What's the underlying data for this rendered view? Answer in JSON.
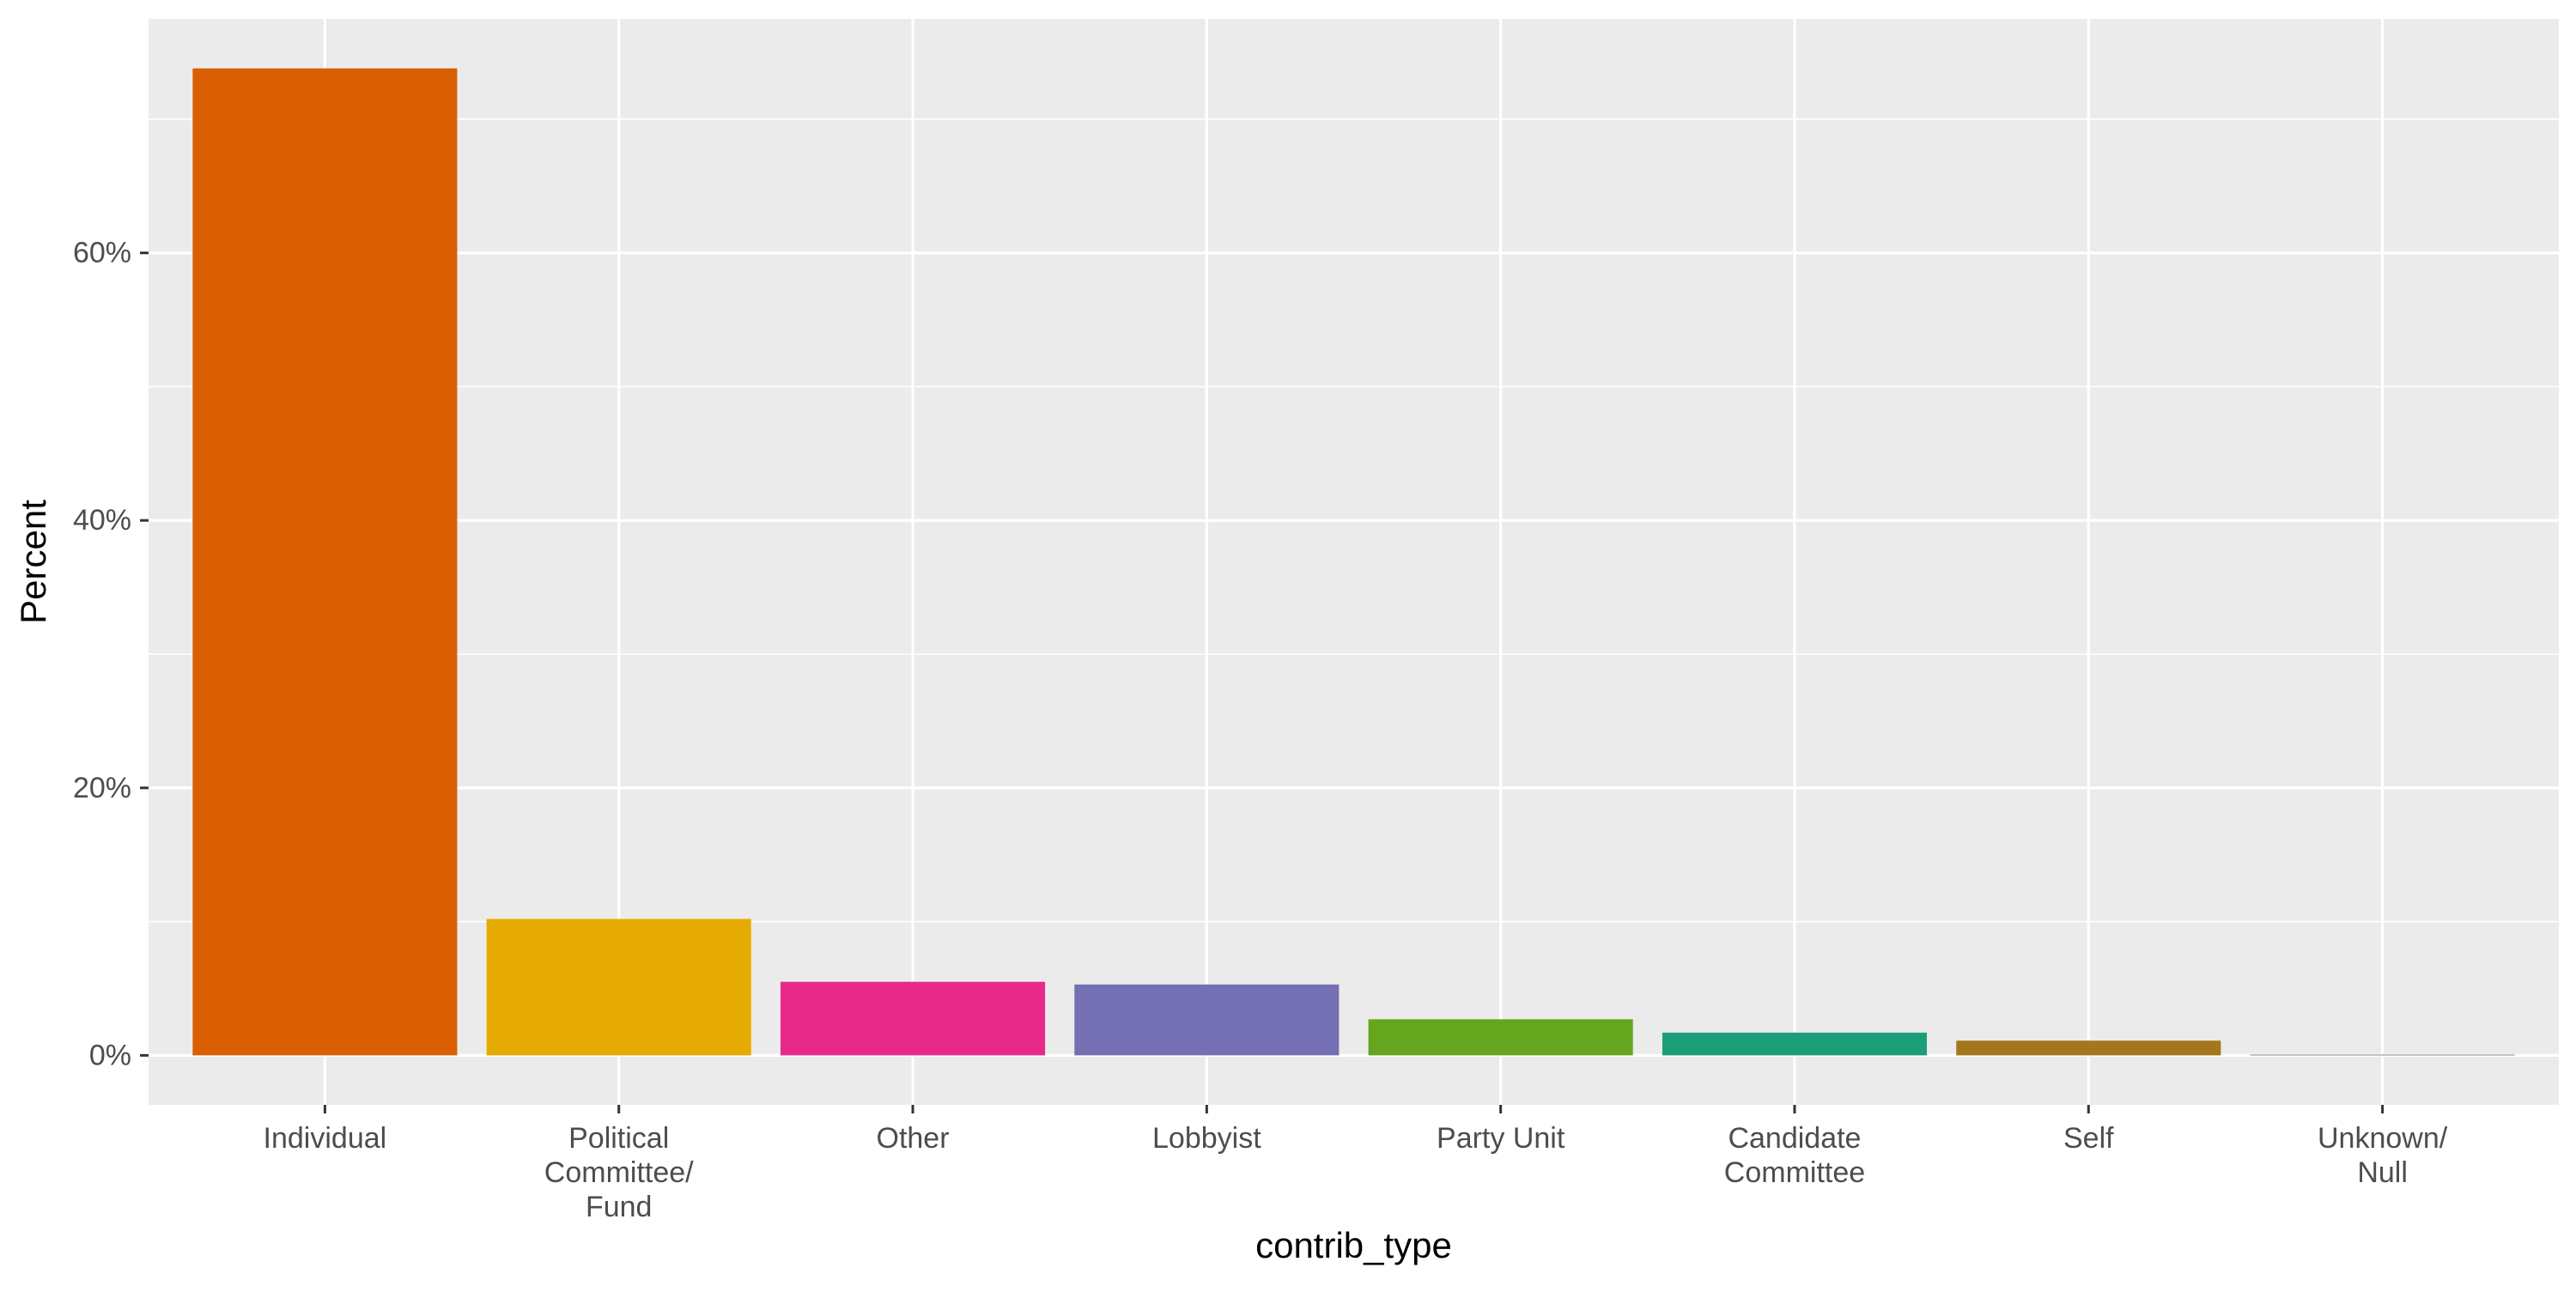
{
  "chart_data": {
    "type": "bar",
    "xlabel": "contrib_type",
    "ylabel": "Percent",
    "categories": [
      [
        "Individual"
      ],
      [
        "Political",
        "Committee/",
        "Fund"
      ],
      [
        "Other"
      ],
      [
        "Lobbyist"
      ],
      [
        "Party Unit"
      ],
      [
        "Candidate",
        "Committee"
      ],
      [
        "Self"
      ],
      [
        "Unknown/",
        "Null"
      ]
    ],
    "values": [
      73.8,
      10.2,
      5.5,
      5.3,
      2.7,
      1.7,
      1.1,
      0.05
    ],
    "colors": [
      "#D95F02",
      "#E6AB02",
      "#E7298A",
      "#7570B3",
      "#66A61E",
      "#1B9E77",
      "#A6761D",
      "#666666"
    ],
    "ylim": [
      -3.7,
      77.5
    ],
    "yticks": [
      0,
      20,
      40,
      60
    ],
    "ytick_labels": [
      "0%",
      "20%",
      "40%",
      "60%"
    ],
    "grid": true,
    "legend": "none",
    "background": "#EBEBEB"
  }
}
